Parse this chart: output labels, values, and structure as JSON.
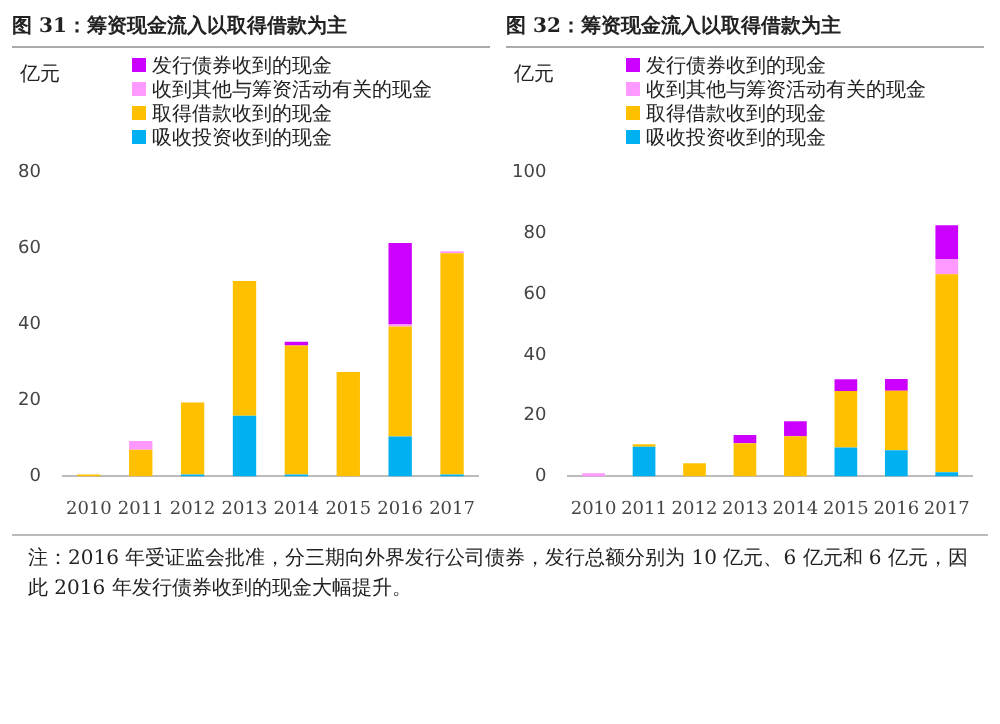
{
  "chart_data": [
    {
      "type": "bar",
      "title": "图 31：筹资现金流入以取得借款为主",
      "ylabel": "亿元",
      "categories": [
        "2010",
        "2011",
        "2012",
        "2013",
        "2014",
        "2015",
        "2016",
        "2017"
      ],
      "stacked": true,
      "grid": false,
      "legend": "top left",
      "ylim": [
        0,
        80
      ],
      "yticks": [
        0,
        20,
        40,
        60,
        80
      ],
      "series": [
        {
          "name": "吸收投资收到的现金",
          "color": "#00b0f0",
          "values": [
            0,
            0,
            0.5,
            16,
            0.5,
            0,
            10.5,
            0.5
          ]
        },
        {
          "name": "取得借款收到的现金",
          "color": "#ffc000",
          "values": [
            0.5,
            7,
            19,
            35.5,
            34,
            27.5,
            29,
            58.3
          ]
        },
        {
          "name": "收到其他与筹资活动有关的现金",
          "color": "#ff99ff",
          "values": [
            0,
            2.3,
            0,
            0,
            0,
            0,
            0.5,
            0.5
          ]
        },
        {
          "name": "发行债券收到的现金",
          "color": "#cc00ff",
          "values": [
            0,
            0,
            0,
            0,
            1,
            0,
            21.5,
            0
          ]
        }
      ],
      "annotations": [
        "注：2016 年受证监会批准，分三期向外界发行公司债券，发行总额分别为 10 亿元、6 亿元和 6 亿元，因此 2016 年发行债券收到的现金大幅提升。"
      ]
    },
    {
      "type": "bar",
      "title": "图 32：筹资现金流入以取得借款为主",
      "ylabel": "亿元",
      "categories": [
        "2010",
        "2011",
        "2012",
        "2013",
        "2014",
        "2015",
        "2016",
        "2017"
      ],
      "stacked": true,
      "grid": false,
      "legend": "top left",
      "ylim": [
        0,
        100
      ],
      "yticks": [
        0,
        20,
        40,
        60,
        80,
        100
      ],
      "series": [
        {
          "name": "吸收投资收到的现金",
          "color": "#00b0f0",
          "values": [
            0,
            9.8,
            0,
            0,
            0,
            9.5,
            8.6,
            1.4
          ]
        },
        {
          "name": "取得借款收到的现金",
          "color": "#ffc000",
          "values": [
            0,
            0.8,
            4.3,
            10.9,
            13.2,
            18.6,
            19.6,
            65.2
          ]
        },
        {
          "name": "收到其他与筹资活动有关的现金",
          "color": "#ff99ff",
          "values": [
            1,
            0,
            0,
            0,
            0,
            0,
            0,
            5
          ]
        },
        {
          "name": "发行债券收到的现金",
          "color": "#cc00ff",
          "values": [
            0,
            0,
            0,
            2.7,
            5,
            3.9,
            3.9,
            11.1
          ]
        }
      ]
    }
  ]
}
